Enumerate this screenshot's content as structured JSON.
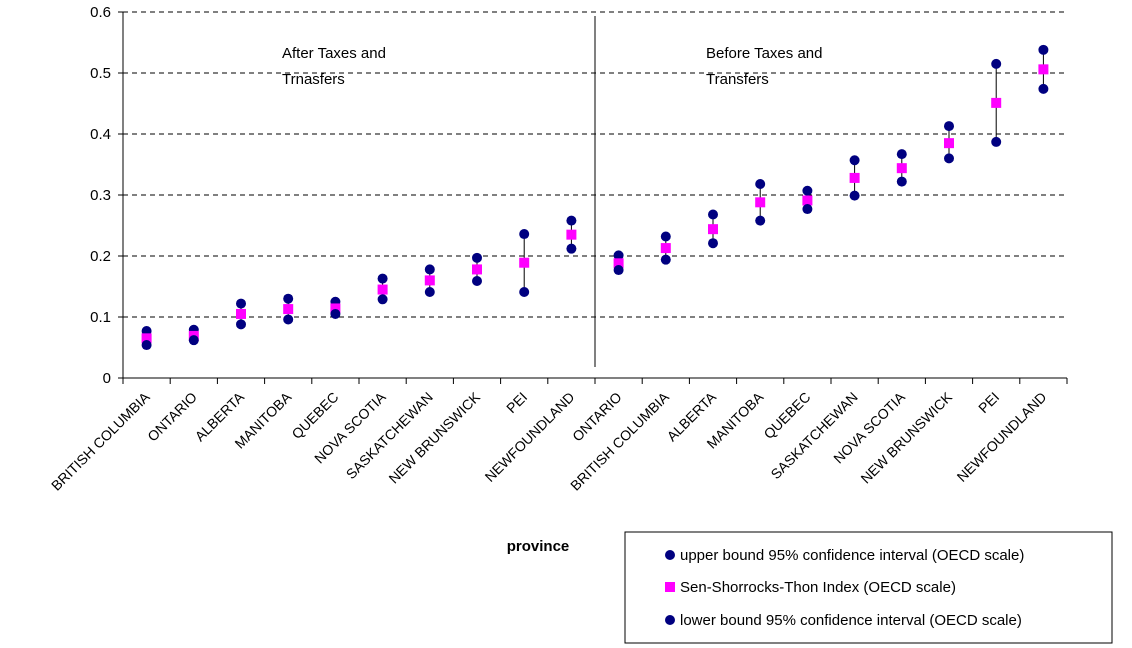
{
  "chart_data": {
    "type": "scatter",
    "xlabel": "province",
    "ylim": [
      0,
      0.6
    ],
    "yticks": [
      "0",
      "0.1",
      "0.2",
      "0.3",
      "0.4",
      "0.5",
      "0.6"
    ],
    "grid": "horizontal dashed",
    "legend_position": "bottom-right",
    "categories": [
      "BRITISH COLUMBIA",
      "ONTARIO",
      "ALBERTA",
      "MANITOBA",
      "QUEBEC",
      "NOVA SCOTIA",
      "SASKATCHEWAN",
      "NEW BRUNSWICK",
      "PEI",
      "NEWFOUNDLAND",
      "ONTARIO",
      "BRITISH COLUMBIA",
      "ALBERTA",
      "MANITOBA",
      "QUEBEC",
      "SASKATCHEWAN",
      "NOVA SCOTIA",
      "NEW BRUNSWICK",
      "PEI",
      "NEWFOUNDLAND"
    ],
    "annotations": [
      {
        "lines": [
          "After Taxes and",
          "Trnasfers"
        ]
      },
      {
        "lines": [
          "Before Taxes and",
          "Transfers"
        ]
      }
    ],
    "series": [
      {
        "name": "upper bound 95% confidence interval (OECD scale)",
        "color": "#000080",
        "marker": "circle",
        "values": [
          0.077,
          0.079,
          0.122,
          0.13,
          0.125,
          0.163,
          0.178,
          0.197,
          0.236,
          0.258,
          0.201,
          0.232,
          0.268,
          0.318,
          0.307,
          0.357,
          0.367,
          0.413,
          0.515,
          0.538
        ]
      },
      {
        "name": "Sen-Shorrocks-Thon Index (OECD scale)",
        "color": "#ff00ff",
        "marker": "square",
        "values": [
          0.065,
          0.069,
          0.105,
          0.113,
          0.114,
          0.145,
          0.16,
          0.178,
          0.189,
          0.235,
          0.188,
          0.213,
          0.244,
          0.288,
          0.291,
          0.328,
          0.344,
          0.385,
          0.451,
          0.506
        ]
      },
      {
        "name": "lower bound 95% confidence interval (OECD scale)",
        "color": "#000080",
        "marker": "circle",
        "values": [
          0.054,
          0.062,
          0.088,
          0.096,
          0.105,
          0.129,
          0.141,
          0.159,
          0.141,
          0.212,
          0.177,
          0.194,
          0.221,
          0.258,
          0.277,
          0.299,
          0.322,
          0.36,
          0.387,
          0.474
        ]
      }
    ]
  }
}
